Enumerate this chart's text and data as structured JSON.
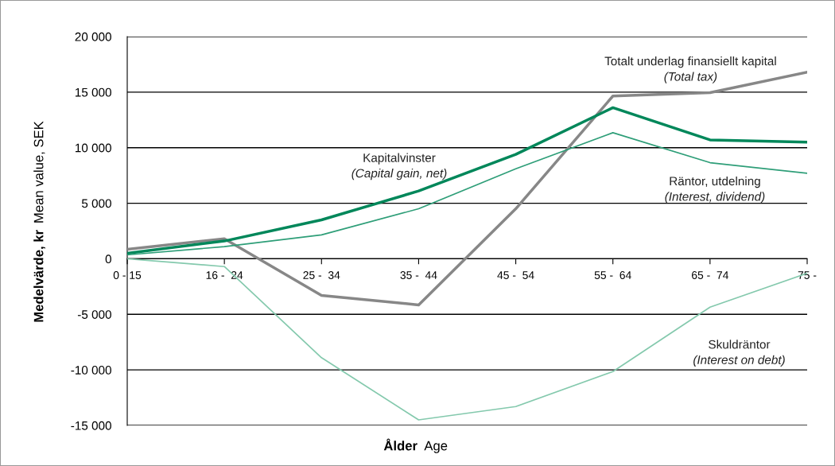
{
  "chart_data": {
    "type": "line",
    "xlabel": "Ålder  Age",
    "ylabel": "Medelvärde, kr  Mean value, SEK",
    "categories": [
      "0 - 15",
      "16 -  24",
      "25 -  34",
      "35 -  44",
      "45 -  54",
      "55 -  64",
      "65 -  74",
      "75 -"
    ],
    "ylim": [
      -15000,
      20000
    ],
    "yticks": [
      {
        "value": -15000,
        "label": "-15 000"
      },
      {
        "value": -10000,
        "label": "-10 000"
      },
      {
        "value": -5000,
        "label": "-5 000"
      },
      0,
      {
        "value": 5000,
        "label": "5 000"
      },
      {
        "value": 10000,
        "label": "10 000"
      },
      {
        "value": 15000,
        "label": "15 000"
      },
      {
        "value": 20000,
        "label": "20 000"
      }
    ],
    "grid": "y",
    "legend": false,
    "marker": "none",
    "line_style": "solid",
    "series": [
      {
        "name": "Totalt underlag finansiellt kapital\n(Total tax)",
        "color": "#878787",
        "values": [
          850,
          1800,
          -3300,
          -4150,
          4500,
          14650,
          14950,
          16800
        ]
      },
      {
        "name": "Kapitalvinster\n(Capital gain, net)",
        "color": "#00875a",
        "values": [
          500,
          1600,
          3500,
          6100,
          9400,
          13600,
          10700,
          10500
        ]
      },
      {
        "name": "Räntor, utdelning\n(Interest, dividend)",
        "color": "#2e9e78",
        "values": [
          350,
          1100,
          2150,
          4500,
          8100,
          11350,
          8650,
          7700
        ]
      },
      {
        "name": "Skuldräntor\n(Interest on debt)",
        "color": "#84c9ad",
        "values": [
          0,
          -700,
          -8900,
          -14500,
          -13300,
          -10150,
          -4350,
          -1300
        ]
      }
    ]
  }
}
